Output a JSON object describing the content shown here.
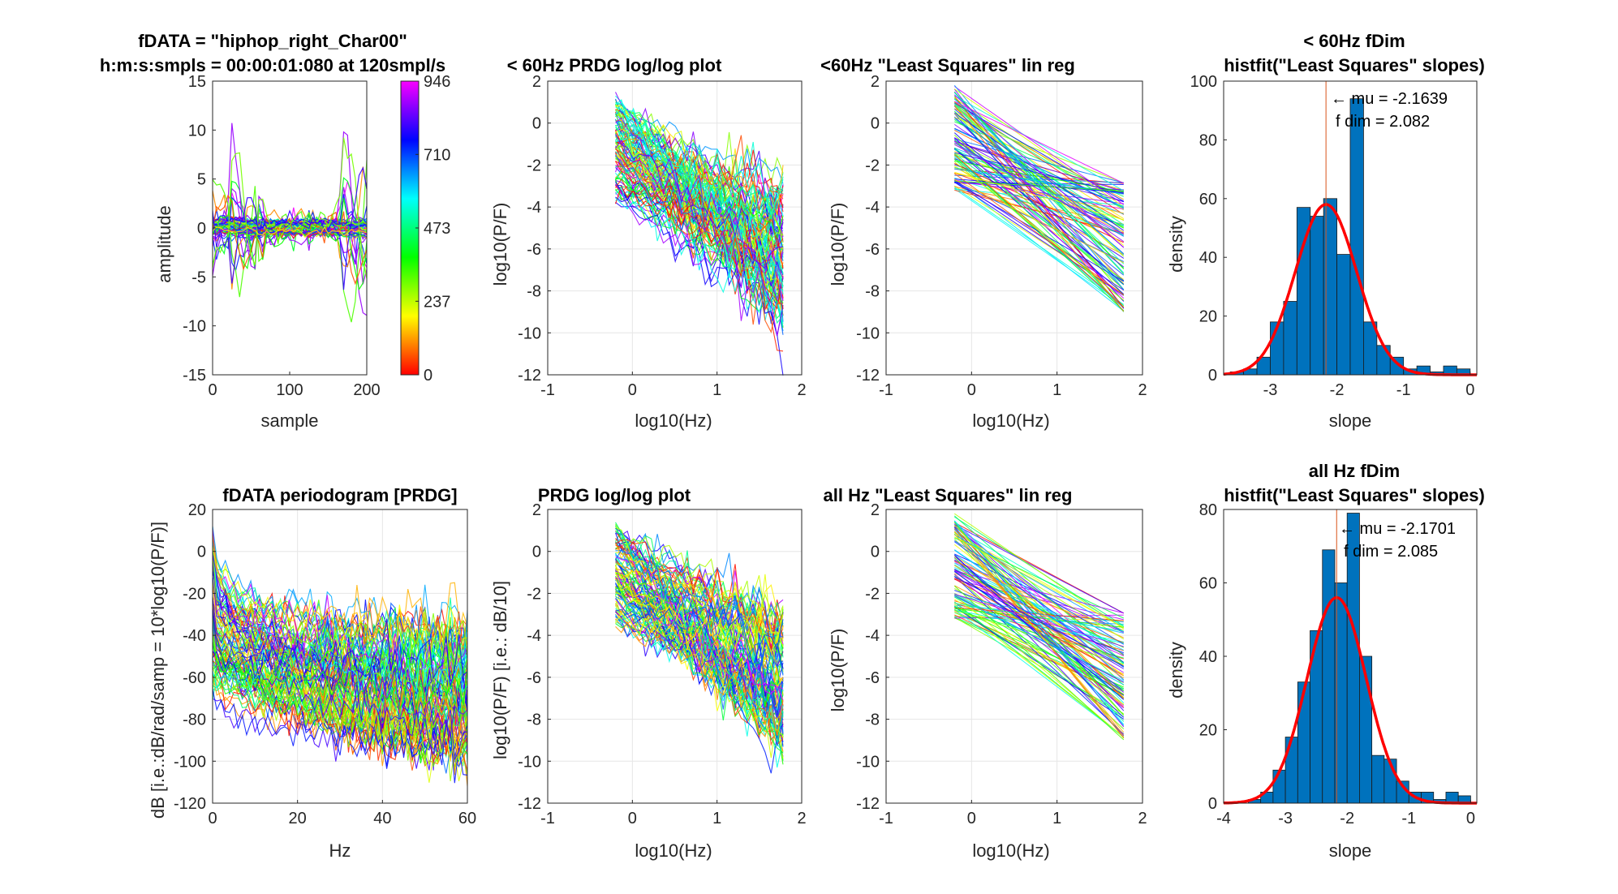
{
  "figure": {
    "title_top_left": "fDATA = \"hiphop_right_Char00\"",
    "subtitle_top_left": "h:m:s:smpls = 00:00:01:080 at 120smpl/s"
  },
  "chart_data": [
    {
      "id": "amplitude",
      "type": "line",
      "title": "fDATA = \"hiphop_right_Char00\"",
      "subtitle": "h:m:s:smpls = 00:00:01:080 at 120smpl/s",
      "xlabel": "sample",
      "ylabel": "amplitude",
      "xlim": [
        0,
        200
      ],
      "ylim": [
        -15,
        15
      ],
      "xticks": [
        0,
        100,
        200
      ],
      "yticks": [
        -15,
        -10,
        -5,
        0,
        5,
        10,
        15
      ],
      "grid": false,
      "series_count": 946,
      "colorbar": {
        "ticks": [
          0,
          237,
          473,
          710,
          946
        ],
        "colormap": "hsv (red to magenta)",
        "range": [
          0,
          946
        ]
      }
    },
    {
      "id": "lt60_loglog",
      "type": "line",
      "title": "< 60Hz PRDG log/log plot",
      "xlabel": "log10(Hz)",
      "ylabel": "log10(P/F)",
      "xlim": [
        -1,
        2
      ],
      "ylim": [
        -12,
        2
      ],
      "xticks": [
        -1,
        0,
        1,
        2
      ],
      "yticks": [
        -12,
        -10,
        -8,
        -6,
        -4,
        -2,
        0,
        2
      ],
      "grid": true,
      "x_range": [
        -0.2,
        1.78
      ],
      "trend": {
        "y_at_start": [
          -3.5,
          1.2
        ],
        "y_at_end": [
          -9.5,
          -2.8
        ]
      }
    },
    {
      "id": "lt60_linreg",
      "type": "line",
      "title": "<60Hz \"Least Squares\" lin reg",
      "xlabel": "log10(Hz)",
      "ylabel": "log10(P/F)",
      "xlim": [
        -1,
        2
      ],
      "ylim": [
        -12,
        2
      ],
      "xticks": [
        -1,
        0,
        1,
        2
      ],
      "yticks": [
        -12,
        -10,
        -8,
        -6,
        -4,
        -2,
        0,
        2
      ],
      "grid": true,
      "x_range": [
        -0.2,
        1.78
      ],
      "trend": {
        "y_at_start": [
          -3.2,
          1.8
        ],
        "y_at_end": [
          -9.0,
          -2.8
        ]
      }
    },
    {
      "id": "lt60_hist",
      "type": "bar",
      "title": "< 60Hz fDim",
      "subtitle": "histfit(\"Least Squares\" slopes)",
      "xlabel": "slope",
      "ylabel": "density",
      "xlim": [
        -3.7,
        0.1
      ],
      "ylim": [
        0,
        100
      ],
      "xticks": [
        -3,
        -2,
        -1,
        0
      ],
      "yticks": [
        0,
        20,
        40,
        60,
        80,
        100
      ],
      "grid": false,
      "bin_width": 0.2,
      "bins_start": [
        -3.6,
        -3.4,
        -3.2,
        -3.0,
        -2.8,
        -2.6,
        -2.4,
        -2.2,
        -2.0,
        -1.8,
        -1.6,
        -1.4,
        -1.2,
        -1.0,
        -0.8,
        -0.6,
        -0.4,
        -0.2,
        0.0
      ],
      "values": [
        1,
        2,
        6,
        18,
        25,
        57,
        54,
        60,
        41,
        94,
        18,
        10,
        6,
        2,
        3,
        1,
        3,
        2,
        0
      ],
      "fit": {
        "mu": -2.1639,
        "sigma": 0.46,
        "peak": 58
      },
      "mean_line": -2.1639,
      "annotation_mu": "← mu = -2.1639",
      "annotation_fdim": "f dim = 2.082",
      "colors": {
        "bars": "#0072bd",
        "fit": "#ff0000",
        "mean": "#d95319"
      }
    },
    {
      "id": "allhz_periodogram",
      "type": "line",
      "title": "fDATA periodogram [PRDG]",
      "xlabel": "Hz",
      "ylabel": "dB [i.e.:dB/rad/samp = 10*log10(P/F)]",
      "xlim": [
        0,
        60
      ],
      "ylim": [
        -120,
        20
      ],
      "xticks": [
        0,
        20,
        40,
        60
      ],
      "yticks": [
        -120,
        -100,
        -80,
        -60,
        -40,
        -20,
        0,
        20
      ],
      "grid": true,
      "trend": {
        "y_at_start": [
          -70,
          12
        ],
        "y_at_end": [
          -100,
          -28
        ]
      }
    },
    {
      "id": "allhz_loglog",
      "type": "line",
      "title": "PRDG log/log plot",
      "xlabel": "log10(Hz)",
      "ylabel": "log10(P/F) [i.e.: dB/10]",
      "xlim": [
        -1,
        2
      ],
      "ylim": [
        -12,
        2
      ],
      "xticks": [
        -1,
        0,
        1,
        2
      ],
      "yticks": [
        -12,
        -10,
        -8,
        -6,
        -4,
        -2,
        0,
        2
      ],
      "grid": true,
      "x_range": [
        -0.2,
        1.78
      ],
      "trend": {
        "y_at_start": [
          -3.5,
          1.2
        ],
        "y_at_end": [
          -9.5,
          -2.8
        ]
      }
    },
    {
      "id": "allhz_linreg",
      "type": "line",
      "title": "all Hz \"Least Squares\" lin reg",
      "xlabel": "log10(Hz)",
      "ylabel": "log10(P/F)",
      "xlim": [
        -1,
        2
      ],
      "ylim": [
        -12,
        2
      ],
      "xticks": [
        -1,
        0,
        1,
        2
      ],
      "yticks": [
        -12,
        -10,
        -8,
        -6,
        -4,
        -2,
        0,
        2
      ],
      "grid": true,
      "x_range": [
        -0.2,
        1.78
      ],
      "trend": {
        "y_at_start": [
          -3.2,
          1.8
        ],
        "y_at_end": [
          -9.0,
          -2.8
        ]
      }
    },
    {
      "id": "allhz_hist",
      "type": "bar",
      "title": "all Hz fDim",
      "subtitle": "histfit(\"Least Squares\" slopes)",
      "xlabel": "slope",
      "ylabel": "density",
      "xlim": [
        -4,
        0.1
      ],
      "ylim": [
        0,
        80
      ],
      "xticks": [
        -4,
        -3,
        -2,
        -1,
        0
      ],
      "yticks": [
        0,
        20,
        40,
        60,
        80
      ],
      "grid": false,
      "bin_width": 0.2,
      "bins_start": [
        -3.6,
        -3.4,
        -3.2,
        -3.0,
        -2.8,
        -2.6,
        -2.4,
        -2.2,
        -2.0,
        -1.8,
        -1.6,
        -1.4,
        -1.2,
        -1.0,
        -0.8,
        -0.6,
        -0.4,
        -0.2,
        0.0
      ],
      "values": [
        1,
        3,
        9,
        18,
        33,
        47,
        69,
        60,
        79,
        40,
        13,
        12,
        6,
        3,
        3,
        1,
        3,
        2,
        0
      ],
      "fit": {
        "mu": -2.1701,
        "sigma": 0.48,
        "peak": 56
      },
      "mean_line": -2.1701,
      "annotation_mu": "← mu = -2.1701",
      "annotation_fdim": "f dim = 2.085",
      "colors": {
        "bars": "#0072bd",
        "fit": "#ff0000",
        "mean": "#d95319"
      }
    }
  ]
}
